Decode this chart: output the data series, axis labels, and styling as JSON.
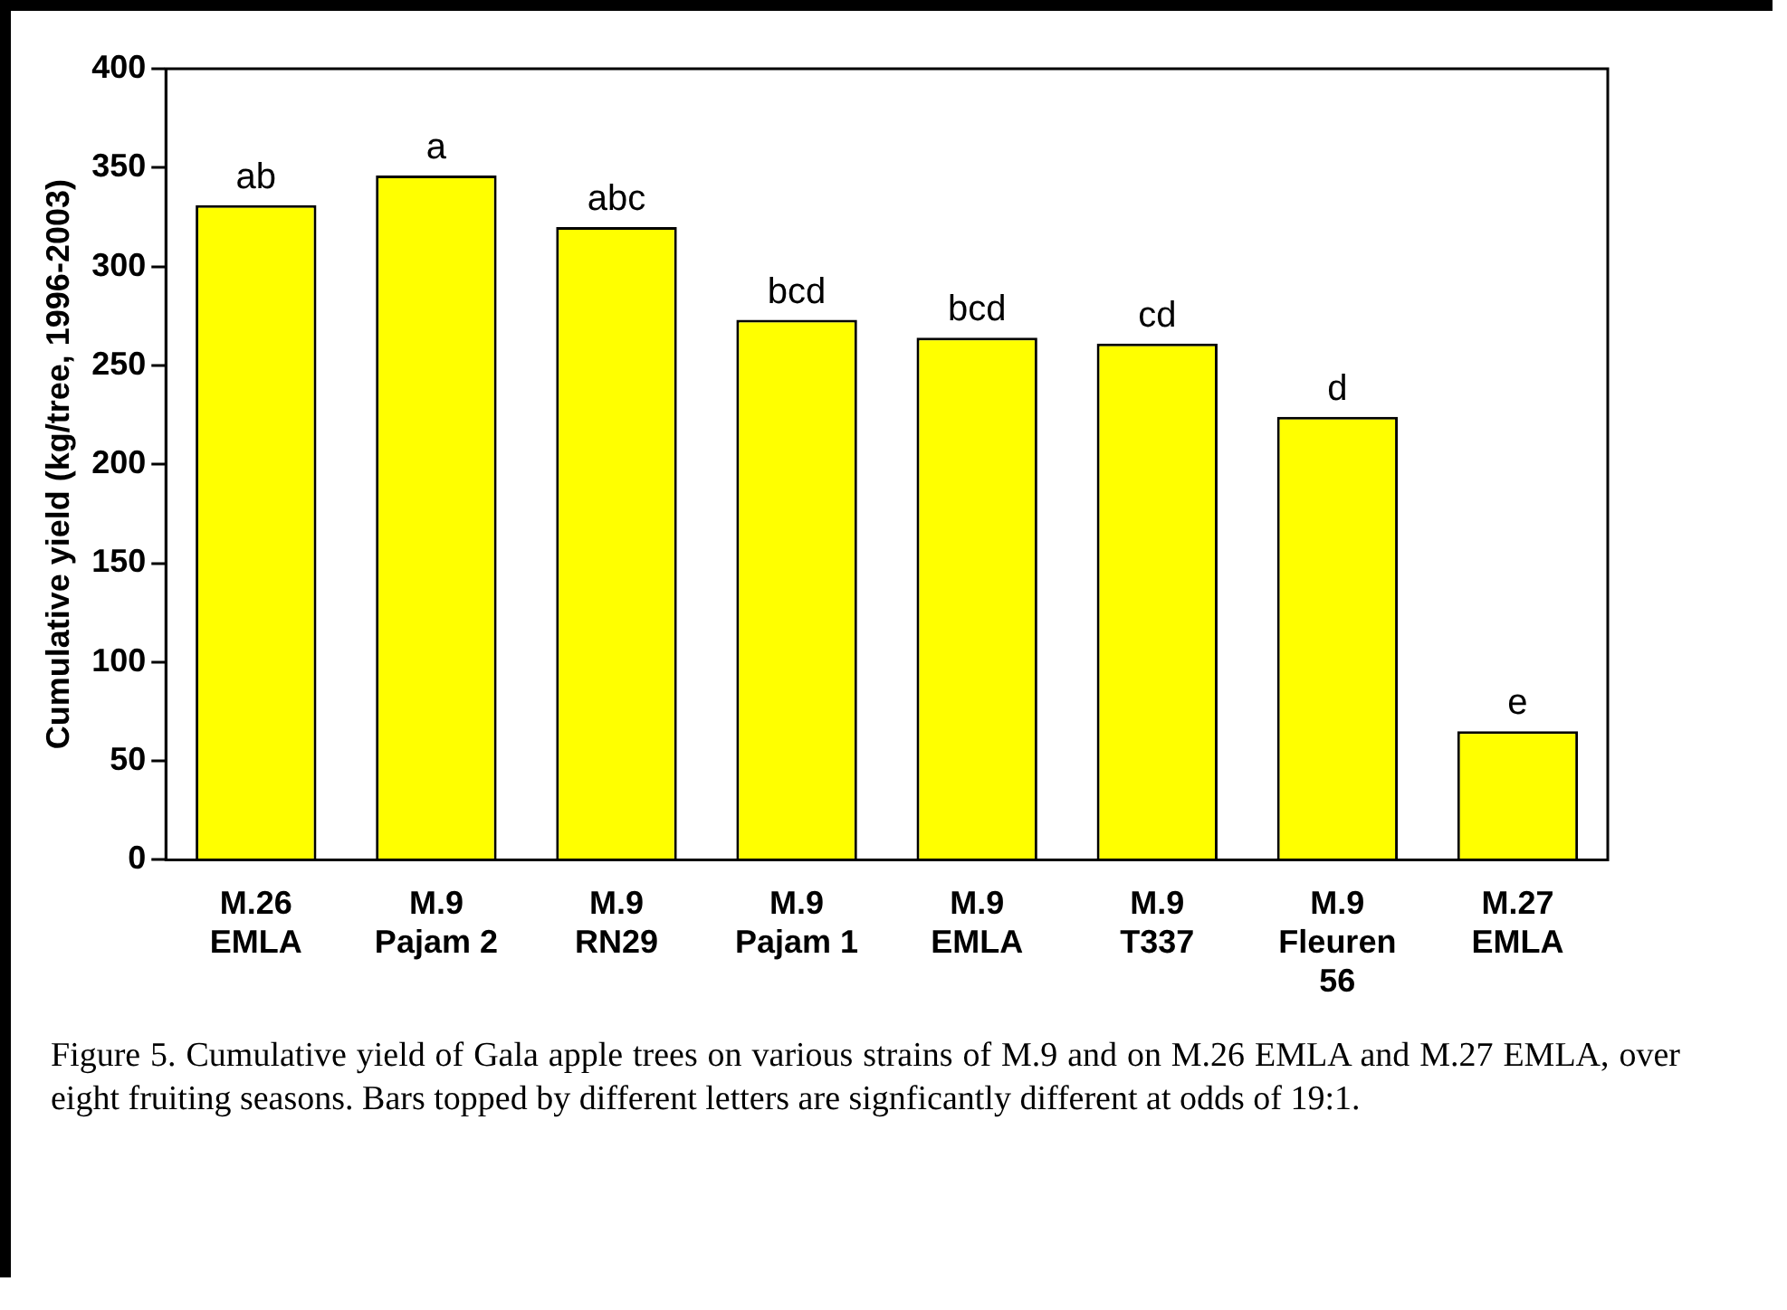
{
  "chart_data": {
    "type": "bar",
    "ylabel": "Cumulative yield (kg/tree, 1996-2003)",
    "categories": [
      "M.26\nEMLA",
      "M.9\nPajam 2",
      "M.9\nRN29",
      "M.9\nPajam 1",
      "M.9\nEMLA",
      "M.9\nT337",
      "M.9\nFleuren\n56",
      "M.27\nEMLA"
    ],
    "values": [
      331,
      346,
      320,
      273,
      264,
      261,
      224,
      65
    ],
    "color": "#ffff00",
    "ylim": [
      0,
      400
    ],
    "yticks": [
      0,
      50,
      100,
      150,
      200,
      250,
      300,
      350,
      400
    ],
    "grid": false,
    "legend": false,
    "annotations": [
      {
        "text": "ab",
        "x": "M.26\nEMLA",
        "y": 331
      },
      {
        "text": "a",
        "x": "M.9\nPajam 2",
        "y": 346
      },
      {
        "text": "abc",
        "x": "M.9\nRN29",
        "y": 320
      },
      {
        "text": "bcd",
        "x": "M.9\nPajam 1",
        "y": 273
      },
      {
        "text": "bcd",
        "x": "M.9\nEMLA",
        "y": 264
      },
      {
        "text": "cd",
        "x": "M.9\nT337",
        "y": 261
      },
      {
        "text": "d",
        "x": "M.9\nFleuren\n56",
        "y": 224
      },
      {
        "text": "e",
        "x": "M.27\nEMLA",
        "y": 65
      },
      "Figure 5.  Cumulative yield of Gala apple trees on various strains of M.9 and on M.26 EMLA and M.27 EMLA, over eight fruiting seasons.  Bars topped by different letters are signficantly different at odds of 19:1."
    ]
  }
}
